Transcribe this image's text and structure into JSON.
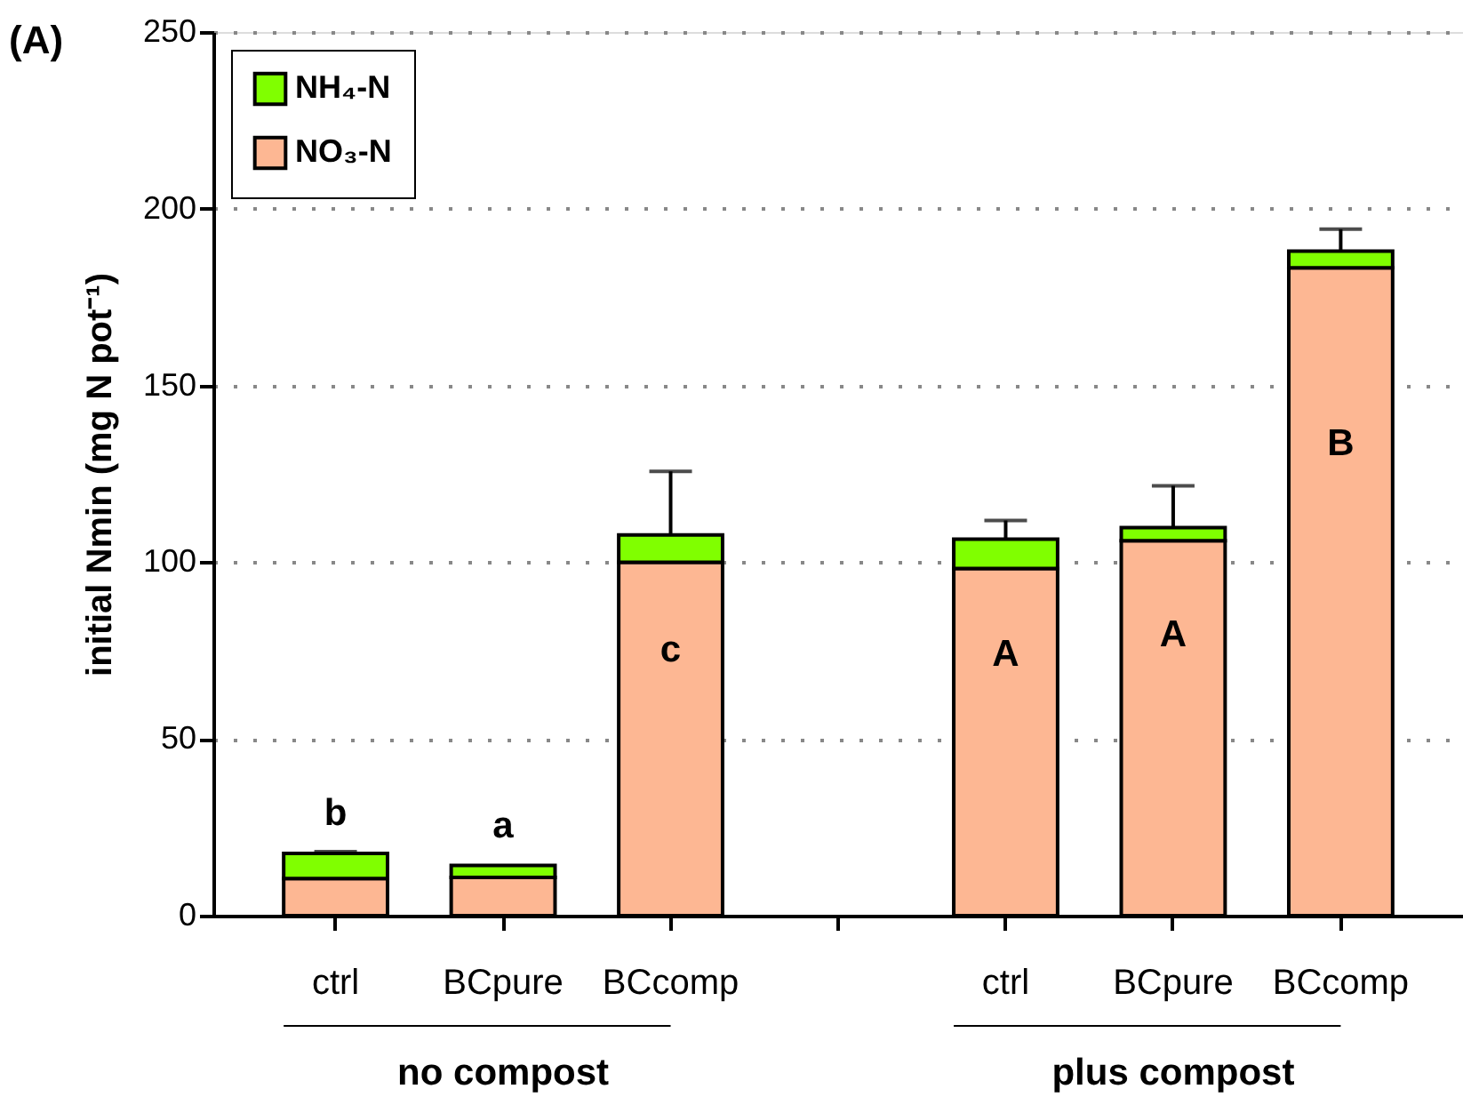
{
  "chart_data": {
    "type": "bar",
    "stacked": true,
    "categories": [
      "ctrl",
      "BCpure",
      "BCcomp",
      null,
      "ctrl",
      "BCpure",
      "BCcomp"
    ],
    "series": [
      {
        "name": "NO₃-N",
        "color": "#fdb793",
        "values": [
          10.5,
          10.8,
          100,
          null,
          98.2,
          106.1,
          183.3
        ]
      },
      {
        "name": "NH₄-N",
        "color": "#80ff00",
        "values": [
          7.1,
          3.4,
          7.7,
          null,
          8.3,
          3.7,
          4.7
        ],
        "errors": [
          0.5,
          null,
          18,
          null,
          5.3,
          11.8,
          6.2
        ]
      }
    ],
    "title": "(A)",
    "ylabel": "initial Nmin (mg N pot⁻¹)",
    "ylim": [
      0,
      250
    ],
    "yticks": [
      0,
      50,
      100,
      150,
      200,
      250
    ],
    "grid": "y",
    "legend": "top left",
    "annotations": [
      "b",
      "a",
      "c",
      "A",
      "A",
      "B",
      "no compost",
      "plus compost"
    ]
  }
}
